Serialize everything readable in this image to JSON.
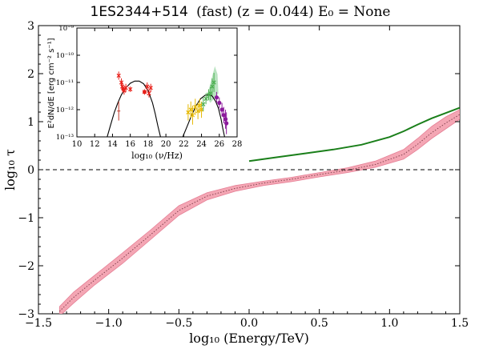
{
  "title": {
    "source": "1ES2344+514",
    "rest": "(fast) (z = 0.044) E₀ = None"
  },
  "colors": {
    "band_fill": "#f4a6b4",
    "band_edge": "#e57f95",
    "median": "#7a3b46",
    "green_line": "#1a7f1a",
    "zero_line": "#000000",
    "sed_model": "#000000",
    "red_points": "#e8201a",
    "yellow_points": "#e6b800",
    "green_points": "#4caf50",
    "purple_points": "#8b1a9b"
  },
  "chart_data": [
    {
      "type": "line",
      "title": "1ES2344+514 (fast) (z = 0.044) E₀ = None",
      "xlabel": "log₁₀ (Energy/TeV)",
      "ylabel": "log₁₀ τ",
      "xlim": [
        -1.5,
        1.5
      ],
      "ylim": [
        -3,
        3
      ],
      "xticks": [
        "−1.5",
        "−1.0",
        "−0.5",
        "0.0",
        "0.5",
        "1.0",
        "1.5"
      ],
      "yticks": [
        "−3",
        "−2",
        "−1",
        "0",
        "1",
        "2",
        "3"
      ],
      "reference_line": {
        "y": 0,
        "style": "dashed"
      },
      "band": {
        "x": [
          -1.35,
          -1.25,
          -1.1,
          -0.9,
          -0.7,
          -0.5,
          -0.3,
          -0.1,
          0.1,
          0.3,
          0.5,
          0.7,
          0.9,
          1.1,
          1.2,
          1.3,
          1.4,
          1.5
        ],
        "lower": [
          -3.05,
          -2.78,
          -2.4,
          -1.95,
          -1.45,
          -0.95,
          -0.63,
          -0.45,
          -0.33,
          -0.25,
          -0.15,
          -0.06,
          0.05,
          0.22,
          0.42,
          0.65,
          0.85,
          1.05
        ],
        "upper": [
          -2.85,
          -2.55,
          -2.2,
          -1.73,
          -1.25,
          -0.75,
          -0.48,
          -0.33,
          -0.24,
          -0.16,
          -0.06,
          0.04,
          0.18,
          0.42,
          0.65,
          0.9,
          1.1,
          1.25
        ],
        "median": [
          -2.95,
          -2.66,
          -2.3,
          -1.84,
          -1.35,
          -0.85,
          -0.55,
          -0.39,
          -0.28,
          -0.2,
          -0.1,
          -0.01,
          0.11,
          0.32,
          0.53,
          0.77,
          0.97,
          1.15
        ]
      },
      "green_line": {
        "x": [
          0.0,
          0.2,
          0.4,
          0.6,
          0.8,
          1.0,
          1.1,
          1.2,
          1.3,
          1.4,
          1.5
        ],
        "y": [
          0.18,
          0.26,
          0.34,
          0.42,
          0.52,
          0.68,
          0.8,
          0.94,
          1.07,
          1.18,
          1.29
        ]
      }
    },
    {
      "type": "scatter",
      "xlabel": "log₁₀ (ν/Hz)",
      "ylabel": "E²dN/dE [erg cm⁻² s⁻¹]",
      "xlim": [
        10,
        28
      ],
      "ylim_log10": [
        -13,
        -9
      ],
      "xticks": [
        "10",
        "12",
        "14",
        "16",
        "18",
        "20",
        "22",
        "24",
        "26",
        "28"
      ],
      "yticks": [
        "10⁻¹³",
        "10⁻¹²",
        "10⁻¹¹",
        "10⁻¹⁰",
        "10⁻⁹"
      ],
      "sync_model": {
        "x": [
          13.4,
          13.8,
          14.2,
          14.6,
          15.0,
          15.5,
          16.0,
          16.5,
          17.0,
          17.5,
          18.0,
          18.5,
          18.8,
          19.1,
          19.4
        ],
        "y": [
          -13.0,
          -12.55,
          -12.1,
          -11.75,
          -11.45,
          -11.2,
          -11.03,
          -10.95,
          -10.95,
          -11.05,
          -11.3,
          -11.75,
          -12.15,
          -12.6,
          -13.0
        ]
      },
      "ic_model": {
        "x": [
          21.9,
          22.4,
          22.9,
          23.4,
          23.9,
          24.4,
          24.8,
          25.2,
          25.6,
          25.9,
          26.2,
          26.4,
          26.6
        ],
        "y": [
          -13.0,
          -12.6,
          -12.2,
          -11.85,
          -11.6,
          -11.47,
          -11.45,
          -11.5,
          -11.7,
          -11.95,
          -12.35,
          -12.7,
          -13.0
        ]
      },
      "red_points": {
        "x": [
          14.7,
          15.0,
          15.1,
          15.3,
          15.5,
          16.0,
          17.6,
          17.9,
          18.1,
          18.3
        ],
        "y": [
          -10.75,
          -11.0,
          -11.15,
          -11.3,
          -11.2,
          -11.25,
          -11.35,
          -11.15,
          -11.4,
          -11.2
        ],
        "err": [
          0.15,
          0.15,
          0.15,
          0.15,
          0.15,
          0.1,
          0.1,
          0.15,
          0.15,
          0.15
        ]
      },
      "lower_limit_point": {
        "x": 14.7,
        "y": -12.05,
        "err": 0.35
      },
      "yellow_points": {
        "x": [
          22.5,
          22.8,
          23.0,
          23.3,
          23.6,
          23.8,
          24.0
        ],
        "y": [
          -12.1,
          -12.0,
          -12.2,
          -11.9,
          -12.05,
          -11.85,
          -12.0
        ],
        "err": [
          0.3,
          0.3,
          0.35,
          0.3,
          0.3,
          0.25,
          0.3
        ]
      },
      "green_points": {
        "x": [
          24.2,
          24.5,
          24.8,
          25.0,
          25.2,
          25.4
        ],
        "y": [
          -11.8,
          -11.6,
          -11.45,
          -11.4,
          -11.15,
          -11.0
        ],
        "err": [
          0.25,
          0.2,
          0.2,
          0.25,
          0.3,
          0.35
        ]
      },
      "purple_points": {
        "x": [
          25.7,
          26.0,
          26.3,
          26.5,
          26.7,
          26.8
        ],
        "y": [
          -11.55,
          -11.75,
          -12.0,
          -12.2,
          -12.35,
          -12.5
        ],
        "err": [
          0.2,
          0.2,
          0.25,
          0.3,
          0.35,
          0.4
        ]
      }
    }
  ]
}
